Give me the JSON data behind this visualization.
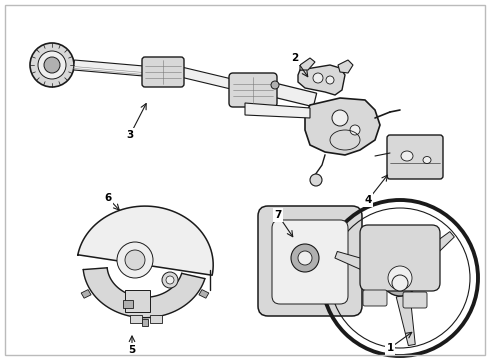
{
  "background_color": "#ffffff",
  "border_color": "#bbbbbb",
  "line_color": "#1a1a1a",
  "fig_width": 4.9,
  "fig_height": 3.6,
  "dpi": 100,
  "label_fontsize": 7.5,
  "lw_main": 1.0,
  "lw_thick": 1.6,
  "lw_thin": 0.6,
  "gray_fill": "#d8d8d8",
  "dark_fill": "#b0b0b0",
  "light_fill": "#efefef"
}
